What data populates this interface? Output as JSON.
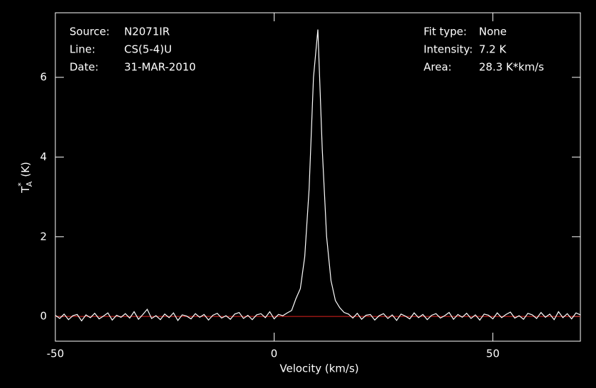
{
  "chart_data": {
    "type": "line",
    "info_left": [
      [
        "Source:",
        "N2071IR"
      ],
      [
        "Line:",
        "CS(5-4)U"
      ],
      [
        "Date:",
        "31-MAR-2010"
      ]
    ],
    "info_right": [
      [
        "Fit type:",
        "None"
      ],
      [
        "Intensity:",
        "7.2 K"
      ],
      [
        "Area:",
        "28.3 K*km/s"
      ]
    ],
    "xlabel": "Velocity (km/s)",
    "ylabel": {
      "symbol": "T",
      "sup": "*",
      "sub": "A",
      "unit": "(K)"
    },
    "xlim": [
      -50,
      70
    ],
    "ylim": [
      -0.62,
      7.62
    ],
    "xticks": [
      -50,
      0,
      50
    ],
    "yticks": [
      0,
      2,
      4,
      6
    ],
    "baseline": {
      "value": 0,
      "color": "#e0211d"
    },
    "x": [
      -50,
      -49,
      -48,
      -47,
      -46,
      -45,
      -44,
      -43,
      -42,
      -41,
      -40,
      -39,
      -38,
      -37,
      -36,
      -35,
      -34,
      -33,
      -32,
      -31,
      -30,
      -29,
      -28,
      -27,
      -26,
      -25,
      -24,
      -23,
      -22,
      -21,
      -20,
      -19,
      -18,
      -17,
      -16,
      -15,
      -14,
      -13,
      -12,
      -11,
      -10,
      -9,
      -8,
      -7,
      -6,
      -5,
      -4,
      -3,
      -2,
      -1,
      0,
      1,
      2,
      3,
      4,
      5,
      6,
      7,
      8,
      9,
      10,
      11,
      12,
      13,
      14,
      15,
      16,
      17,
      18,
      19,
      20,
      21,
      22,
      23,
      24,
      25,
      26,
      27,
      28,
      29,
      30,
      31,
      32,
      33,
      34,
      35,
      36,
      37,
      38,
      39,
      40,
      41,
      42,
      43,
      44,
      45,
      46,
      47,
      48,
      49,
      50,
      51,
      52,
      53,
      54,
      55,
      56,
      57,
      58,
      59,
      60,
      61,
      62,
      63,
      64,
      65,
      66,
      67,
      68,
      69,
      70
    ],
    "series": [
      {
        "color": "#ffffff",
        "values": [
          0.03,
          -0.05,
          0.06,
          -0.08,
          0.02,
          0.05,
          -0.11,
          0.04,
          -0.03,
          0.08,
          -0.06,
          0.01,
          0.09,
          -0.09,
          0.03,
          -0.02,
          0.07,
          -0.04,
          0.12,
          -0.07,
          0.05,
          0.18,
          -0.05,
          0.02,
          -0.08,
          0.06,
          -0.03,
          0.09,
          -0.1,
          0.04,
          0.01,
          -0.06,
          0.07,
          -0.02,
          0.05,
          -0.09,
          0.03,
          0.08,
          -0.04,
          0.02,
          -0.07,
          0.06,
          0.1,
          -0.05,
          0.03,
          -0.08,
          0.04,
          0.07,
          -0.03,
          0.12,
          -0.06,
          0.05,
          0.02,
          0.09,
          0.15,
          0.45,
          0.7,
          1.5,
          3.2,
          6.0,
          7.2,
          4.2,
          2.0,
          0.9,
          0.4,
          0.22,
          0.1,
          0.06,
          -0.04,
          0.08,
          -0.07,
          0.03,
          0.05,
          -0.09,
          0.02,
          0.07,
          -0.05,
          0.04,
          -0.1,
          0.06,
          0.01,
          -0.06,
          0.09,
          -0.03,
          0.05,
          -0.08,
          0.03,
          0.07,
          -0.04,
          0.02,
          0.1,
          -0.07,
          0.05,
          -0.02,
          0.08,
          -0.05,
          0.04,
          -0.09,
          0.06,
          0.03,
          -0.06,
          0.09,
          -0.03,
          0.05,
          0.11,
          -0.04,
          0.02,
          -0.07,
          0.08,
          0.04,
          -0.05,
          0.1,
          -0.02,
          0.06,
          -0.08,
          0.12,
          -0.03,
          0.07,
          -0.06,
          0.09,
          0.04
        ]
      }
    ]
  }
}
